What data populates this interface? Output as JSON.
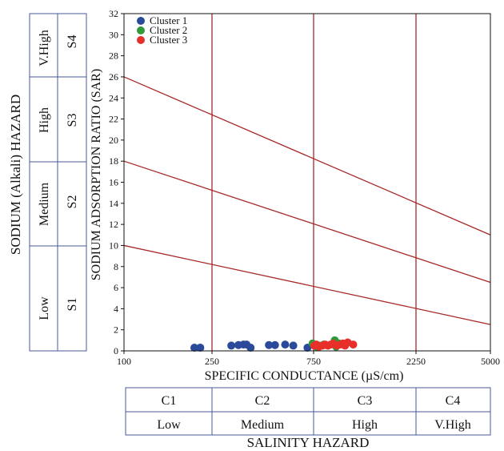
{
  "chart_data": {
    "type": "scatter",
    "title": "",
    "xlabel": "SPECIFIC CONDUCTANCE (µS/cm)",
    "ylabel": "SODIUM ADSORPTION RATIO (SAR)",
    "x_scale": "diagram (C-class segments)",
    "x_ticks": [
      "100",
      "250",
      "750",
      "2250",
      "5000"
    ],
    "x_tick_values": [
      100,
      250,
      750,
      2250,
      5000
    ],
    "y_ticks": [
      "0",
      "2",
      "4",
      "6",
      "8",
      "10",
      "12",
      "14",
      "16",
      "18",
      "20",
      "22",
      "24",
      "26",
      "28",
      "30",
      "32"
    ],
    "ylim": [
      0,
      32
    ],
    "grid": false,
    "legend_position": "top-left",
    "hazard_lines": [
      {
        "boundary": "S1/S2",
        "points": [
          [
            100,
            10
          ],
          [
            5000,
            2.5
          ]
        ]
      },
      {
        "boundary": "S2/S3",
        "points": [
          [
            100,
            18
          ],
          [
            5000,
            6.5
          ]
        ]
      },
      {
        "boundary": "S3/S4",
        "points": [
          [
            100,
            26
          ],
          [
            5000,
            11
          ]
        ]
      }
    ],
    "series": [
      {
        "name": "Cluster 1",
        "color": "#2b4a9a",
        "points": [
          [
            220,
            0.3
          ],
          [
            230,
            0.3
          ],
          [
            345,
            0.5
          ],
          [
            380,
            0.55
          ],
          [
            405,
            0.6
          ],
          [
            420,
            0.6
          ],
          [
            440,
            0.3
          ],
          [
            530,
            0.55
          ],
          [
            560,
            0.55
          ],
          [
            610,
            0.6
          ],
          [
            650,
            0.5
          ],
          [
            720,
            0.3
          ]
        ]
      },
      {
        "name": "Cluster 2",
        "color": "#2f9a3a",
        "points": [
          [
            745,
            0.7
          ],
          [
            770,
            0.5
          ],
          [
            790,
            0.4
          ],
          [
            830,
            0.5
          ],
          [
            900,
            0.6
          ],
          [
            960,
            0.5
          ],
          [
            1060,
            1.0
          ],
          [
            1080,
            0.4
          ],
          [
            1120,
            0.7
          ]
        ]
      },
      {
        "name": "Cluster 3",
        "color": "#e8302a",
        "points": [
          [
            760,
            0.5
          ],
          [
            790,
            0.6
          ],
          [
            830,
            0.4
          ],
          [
            880,
            0.5
          ],
          [
            920,
            0.6
          ],
          [
            960,
            0.5
          ],
          [
            1000,
            0.6
          ],
          [
            1040,
            0.7
          ],
          [
            1090,
            0.5
          ],
          [
            1140,
            0.6
          ],
          [
            1180,
            0.7
          ],
          [
            1210,
            0.5
          ],
          [
            1250,
            0.8
          ],
          [
            1330,
            0.6
          ]
        ]
      }
    ]
  },
  "sodium_hazard": {
    "title": "SODIUM (Alkali) HAZARD",
    "rows": [
      {
        "level": "V.High",
        "code": "S4"
      },
      {
        "level": "High",
        "code": "S3"
      },
      {
        "level": "Medium",
        "code": "S2"
      },
      {
        "level": "Low",
        "code": "S1"
      }
    ]
  },
  "salinity_hazard": {
    "title": "SALINITY HAZARD",
    "columns": [
      {
        "code": "C1",
        "level": "Low"
      },
      {
        "code": "C2",
        "level": "Medium"
      },
      {
        "code": "C3",
        "level": "High"
      },
      {
        "code": "C4",
        "level": "V.High"
      }
    ]
  },
  "colors": {
    "axis": "#111111",
    "region_line": "#a82828",
    "table_border": "#4a5a9a"
  }
}
